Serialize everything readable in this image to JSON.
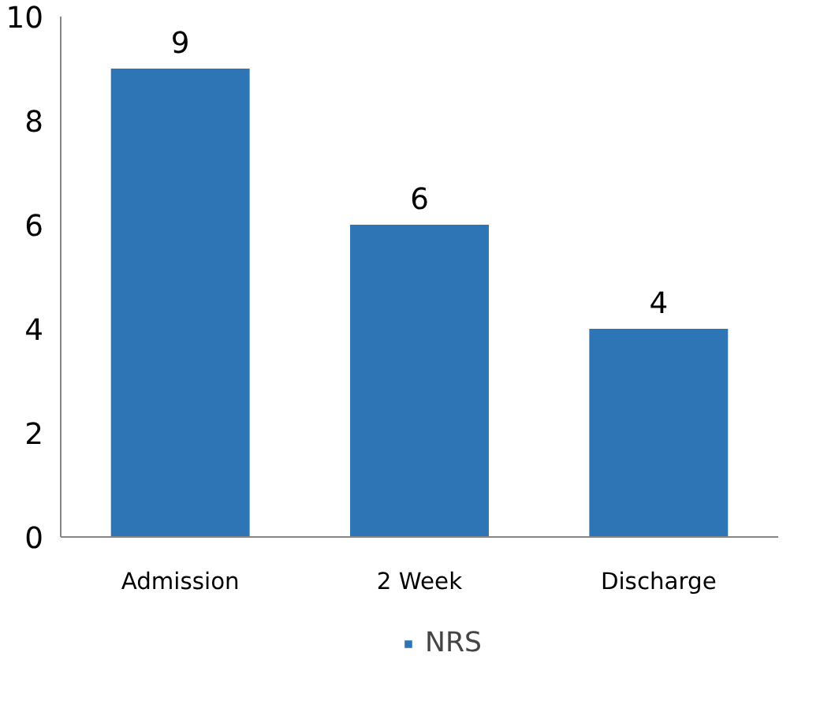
{
  "chart_data": {
    "type": "bar",
    "categories": [
      "Admission",
      "2 Week",
      "Discharge"
    ],
    "series": [
      {
        "name": "NRS",
        "color": "#2e75b6",
        "values": [
          9,
          6,
          4
        ]
      }
    ],
    "ylim": [
      0,
      10
    ],
    "yticks": [
      0,
      2,
      4,
      6,
      8,
      10
    ],
    "grid": false,
    "legend": "bottom",
    "data_labels": true
  }
}
